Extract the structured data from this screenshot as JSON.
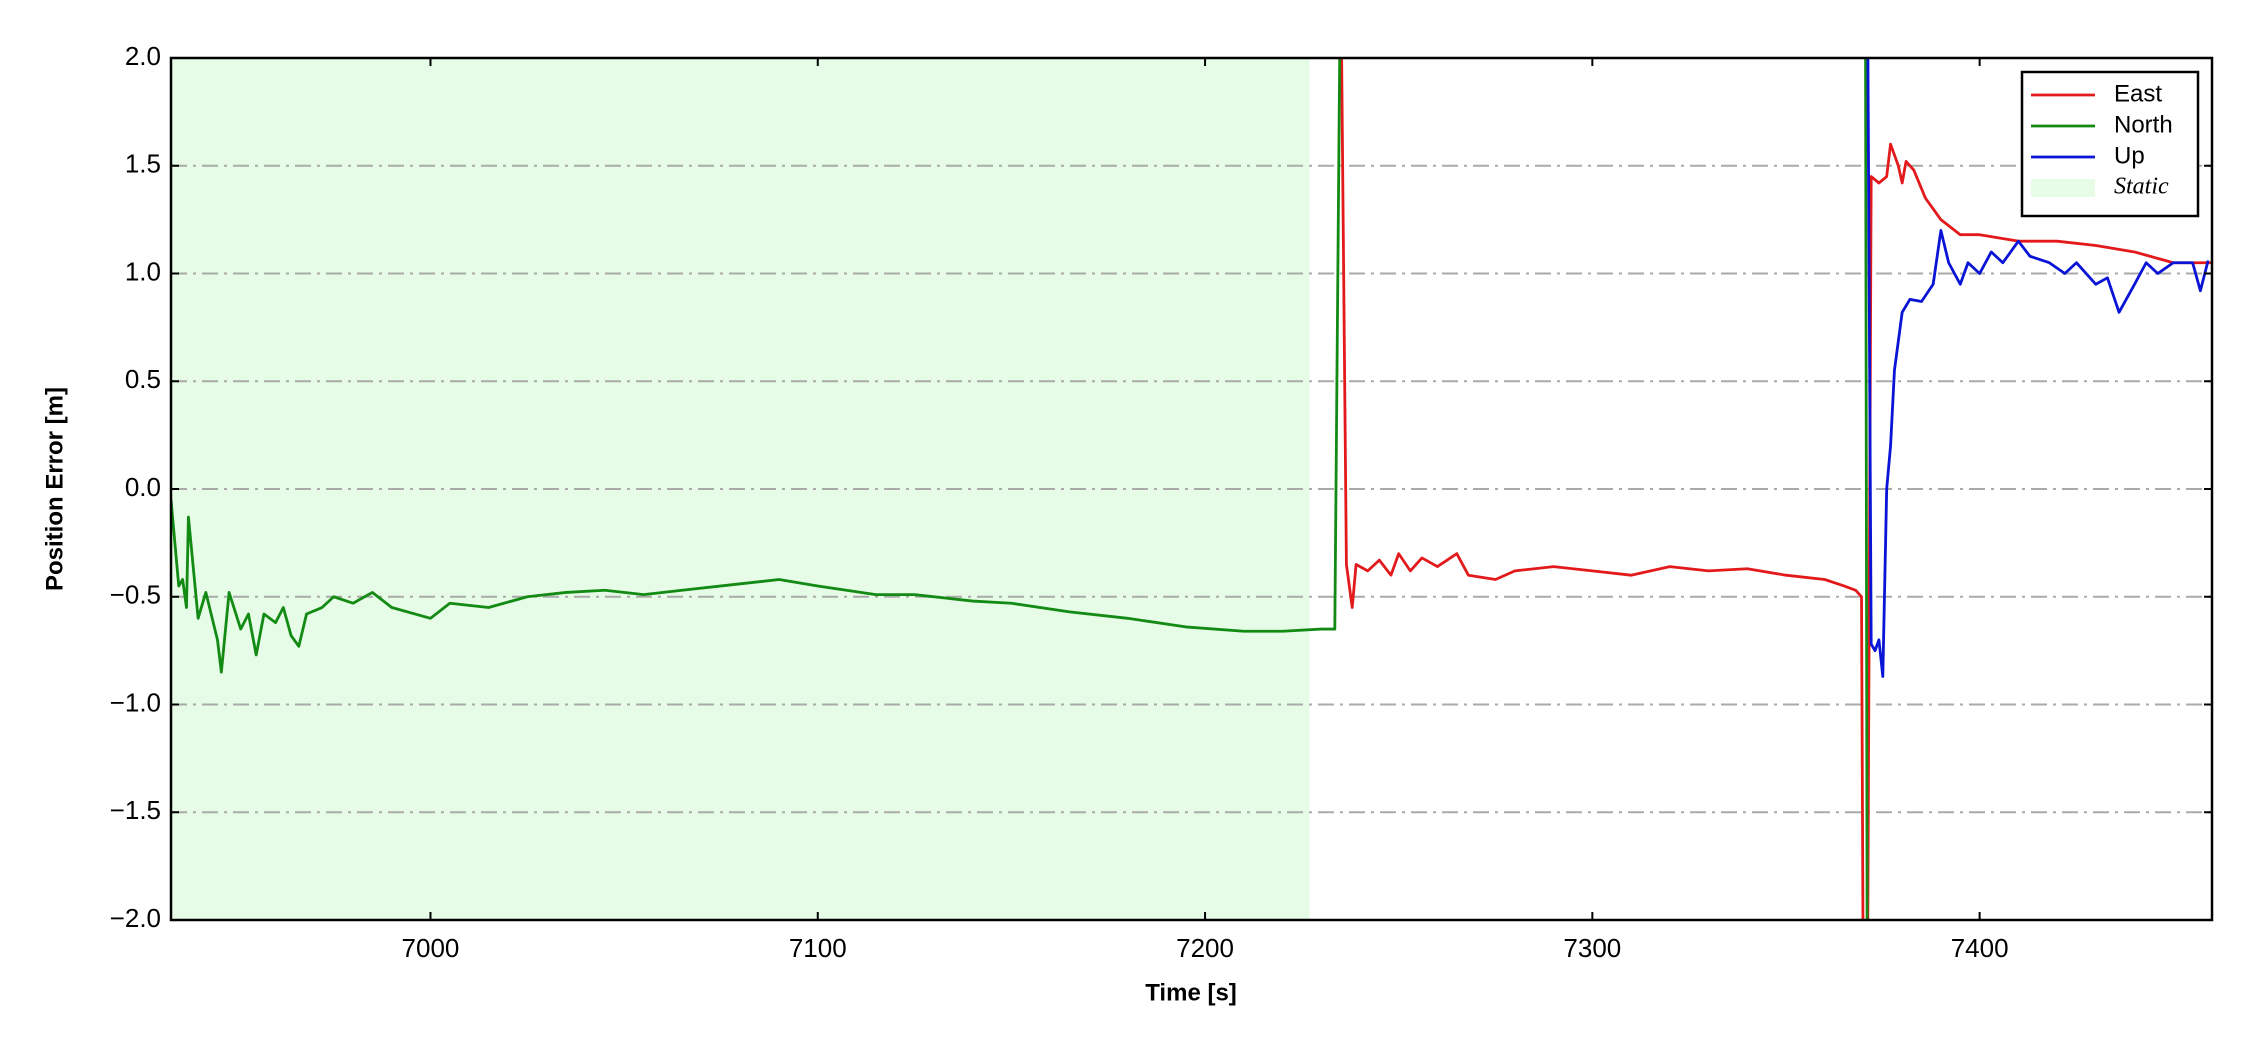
{
  "chart_data": {
    "type": "line",
    "xlabel": "Time [s]",
    "ylabel": "Position Error [m]",
    "xlim": [
      6933,
      7460
    ],
    "ylim": [
      -2.0,
      2.0
    ],
    "xticks": [
      7000,
      7100,
      7200,
      7300,
      7400
    ],
    "yticks": [
      {
        "value": -2.0,
        "label": "−2.0"
      },
      {
        "value": -1.5,
        "label": "−1.5"
      },
      {
        "value": -1.0,
        "label": "−1.0"
      },
      {
        "value": -0.5,
        "label": "−0.5"
      },
      {
        "value": 0.0,
        "label": "0.0"
      },
      0.5,
      {
        "value": 1.0,
        "label": "1.0"
      },
      1.5,
      {
        "value": 2.0,
        "label": "2.0"
      }
    ],
    "grid": true,
    "legend": "upper right",
    "shaded": {
      "name": "Static",
      "x0": 6933,
      "x1": 7227,
      "color": "#e6fce6"
    },
    "series": [
      {
        "name": "East",
        "color": "#e31a1c",
        "x": [
          7235,
          7236.5,
          7238,
          7239,
          7242,
          7245,
          7248,
          7250,
          7253,
          7256,
          7260,
          7265,
          7268,
          7275,
          7280,
          7290,
          7300,
          7310,
          7320,
          7330,
          7340,
          7350,
          7360,
          7365,
          7368,
          7369.5,
          7370,
          7371,
          7372,
          7374,
          7376,
          7377,
          7379,
          7380,
          7381,
          7383,
          7386,
          7390,
          7395,
          7400,
          7410,
          7420,
          7430,
          7440,
          7450,
          7460
        ],
        "values": [
          2.5,
          -0.35,
          -0.55,
          -0.35,
          -0.38,
          -0.33,
          -0.4,
          -0.3,
          -0.38,
          -0.32,
          -0.36,
          -0.3,
          -0.4,
          -0.42,
          -0.38,
          -0.36,
          -0.38,
          -0.4,
          -0.36,
          -0.38,
          -0.37,
          -0.4,
          -0.42,
          -0.45,
          -0.47,
          -0.5,
          -2.5,
          -2.5,
          1.45,
          1.42,
          1.45,
          1.6,
          1.5,
          1.42,
          1.52,
          1.48,
          1.35,
          1.25,
          1.18,
          1.18,
          1.15,
          1.15,
          1.13,
          1.1,
          1.05,
          1.05
        ]
      },
      {
        "name": "North",
        "color": "#138a13",
        "x": [
          6933,
          6935,
          6936,
          6937,
          6937.5,
          6940,
          6942,
          6945,
          6946,
          6948,
          6951,
          6953,
          6955,
          6957,
          6960,
          6962,
          6964,
          6966,
          6968,
          6972,
          6975,
          6980,
          6985,
          6990,
          7000,
          7005,
          7015,
          7025,
          7035,
          7045,
          7055,
          7065,
          7080,
          7090,
          7100,
          7115,
          7125,
          7140,
          7150,
          7165,
          7180,
          7195,
          7210,
          7220,
          7230,
          7233.5,
          7235,
          7370,
          7370.5,
          7371
        ],
        "values": [
          -0.05,
          -0.45,
          -0.42,
          -0.55,
          -0.13,
          -0.6,
          -0.48,
          -0.7,
          -0.85,
          -0.48,
          -0.65,
          -0.58,
          -0.77,
          -0.58,
          -0.62,
          -0.55,
          -0.68,
          -0.73,
          -0.58,
          -0.55,
          -0.5,
          -0.53,
          -0.48,
          -0.55,
          -0.6,
          -0.53,
          -0.55,
          -0.5,
          -0.48,
          -0.47,
          -0.49,
          -0.47,
          -0.44,
          -0.42,
          -0.45,
          -0.49,
          -0.49,
          -0.52,
          -0.53,
          -0.57,
          -0.6,
          -0.64,
          -0.66,
          -0.66,
          -0.65,
          -0.65,
          2.5,
          null,
          2.5,
          -2.5
        ]
      },
      {
        "name": "Up",
        "color": "#0a14d6",
        "x": [
          7371,
          7372,
          7373,
          7374,
          7375,
          7376,
          7377,
          7378,
          7380,
          7382,
          7385,
          7388,
          7390,
          7392,
          7395,
          7397,
          7400,
          7403,
          7406,
          7410,
          7413,
          7418,
          7422,
          7425,
          7430,
          7433,
          7436,
          7440,
          7443,
          7446,
          7450,
          7455,
          7457,
          7459
        ],
        "values": [
          2.5,
          -0.72,
          -0.75,
          -0.7,
          -0.87,
          0.0,
          0.2,
          0.55,
          0.82,
          0.88,
          0.87,
          0.95,
          1.2,
          1.05,
          0.95,
          1.05,
          1.0,
          1.1,
          1.05,
          1.15,
          1.08,
          1.05,
          1.0,
          1.05,
          0.95,
          0.98,
          0.82,
          0.95,
          1.05,
          1.0,
          1.05,
          1.05,
          0.92,
          1.06
        ]
      }
    ]
  }
}
